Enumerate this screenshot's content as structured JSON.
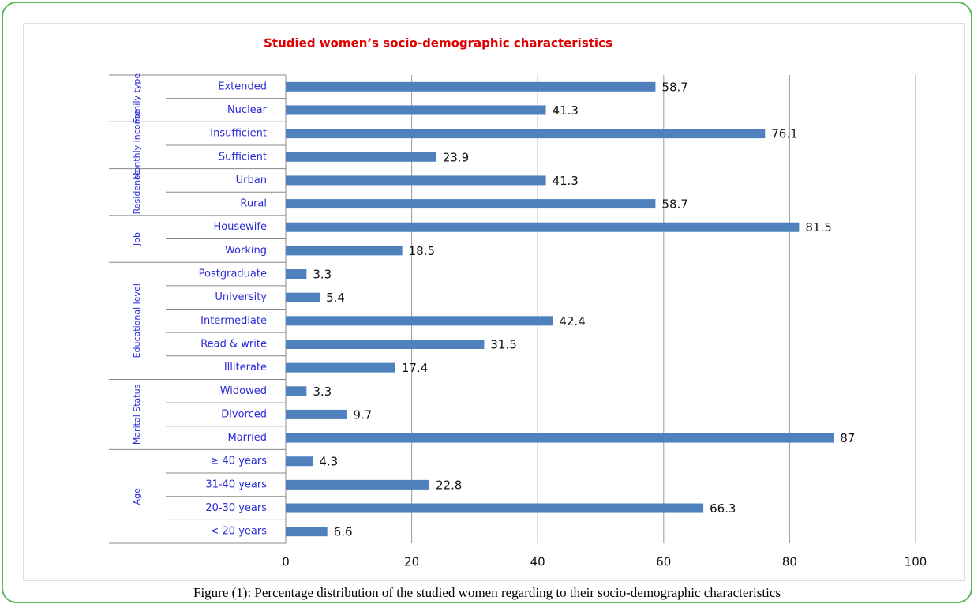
{
  "chart_data": {
    "type": "bar",
    "orientation": "horizontal",
    "title": "Studied women’s socio-demographic characteristics",
    "groups": [
      {
        "name": "Family type",
        "categories": [
          "Extended",
          "Nuclear"
        ],
        "values": [
          58.7,
          41.3
        ]
      },
      {
        "name": "Monthly income",
        "categories": [
          "Insufficient",
          "Sufficient"
        ],
        "values": [
          76.1,
          23.9
        ]
      },
      {
        "name": "Residence",
        "categories": [
          "Urban",
          "Rural"
        ],
        "values": [
          41.3,
          58.7
        ]
      },
      {
        "name": "Job",
        "categories": [
          "Housewife",
          "Working"
        ],
        "values": [
          81.5,
          18.5
        ]
      },
      {
        "name": "Educational level",
        "categories": [
          "Postgraduate",
          "University",
          "Intermediate",
          "Read & write",
          "Illiterate"
        ],
        "values": [
          3.3,
          5.4,
          42.4,
          31.5,
          17.4
        ]
      },
      {
        "name": "Marital Status",
        "categories": [
          "Widowed",
          "Divorced",
          "Married"
        ],
        "values": [
          3.3,
          9.7,
          87
        ]
      },
      {
        "name": "Age",
        "categories": [
          "≥ 40 years",
          "31-40 years",
          "20-30 years",
          "< 20 years"
        ],
        "values": [
          4.3,
          22.8,
          66.3,
          6.6
        ]
      }
    ],
    "color": "#4f81bd",
    "xlim": [
      0,
      100
    ],
    "xticks": [
      0,
      20,
      40,
      60,
      80,
      100
    ],
    "grid": true,
    "caption": "Figure (1): Percentage distribution of the studied women regarding to their socio-demographic characteristics"
  }
}
